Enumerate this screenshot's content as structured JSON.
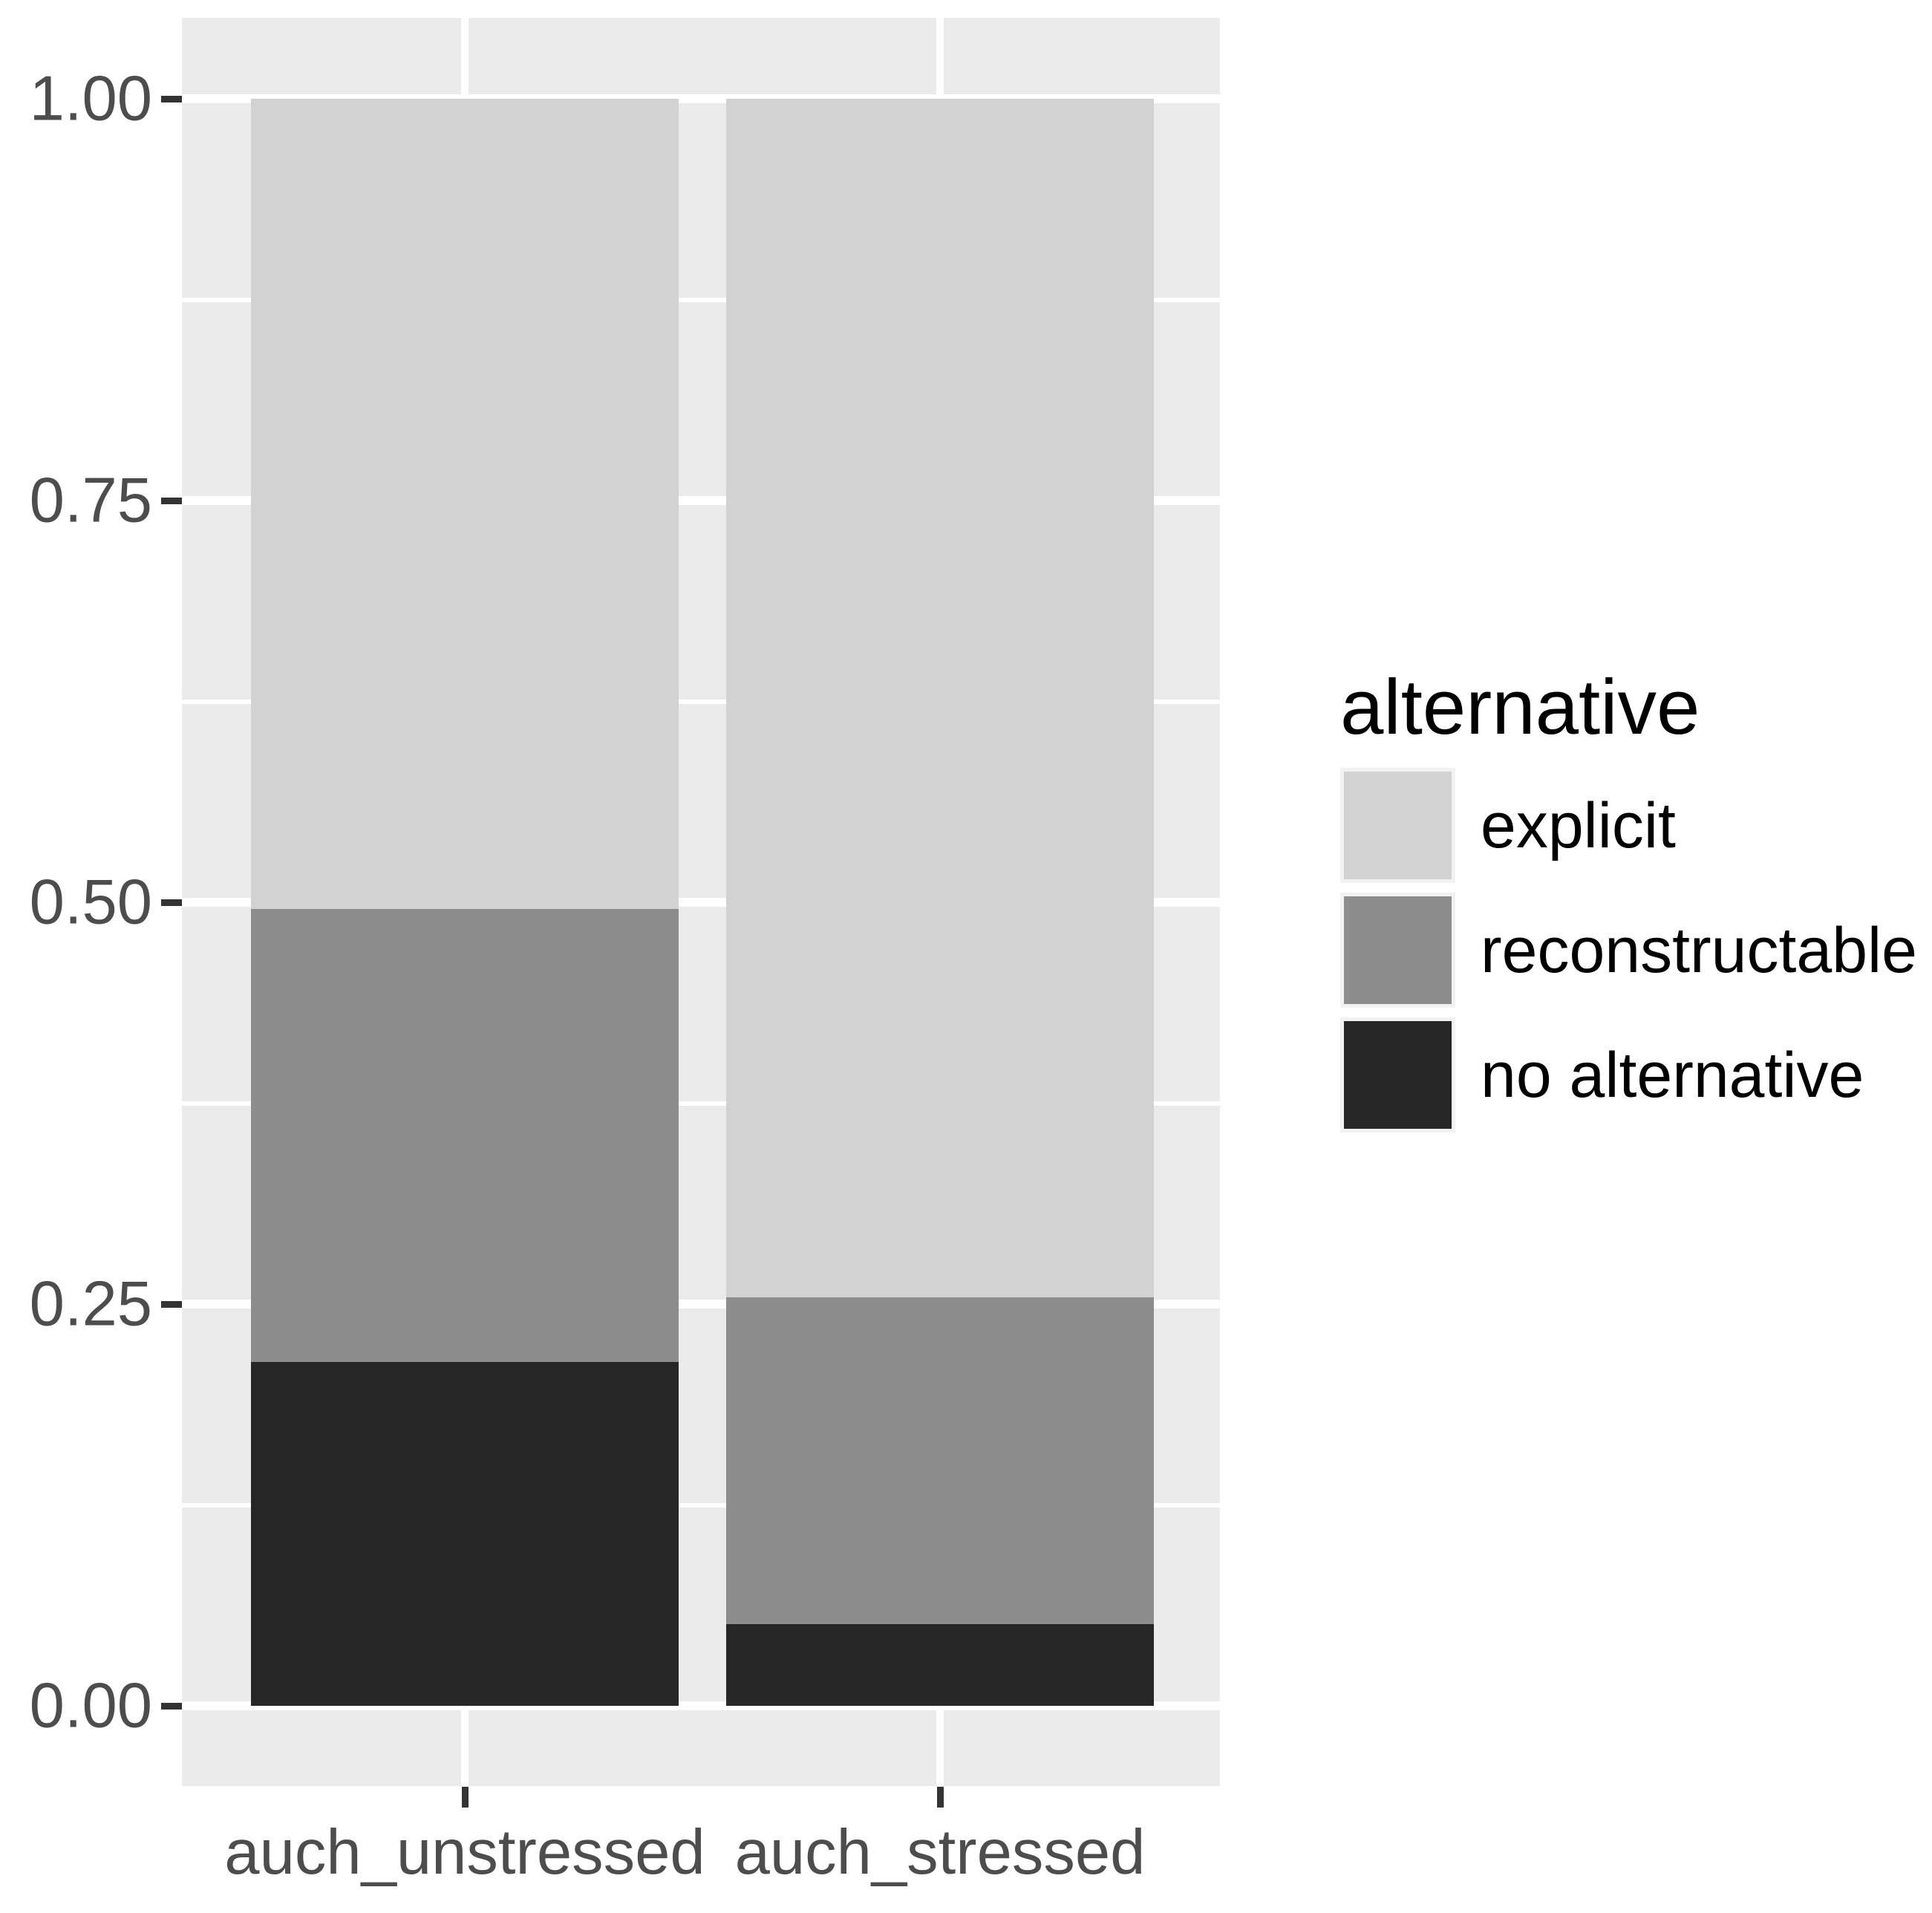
{
  "figure": {
    "background": "#FFFFFF",
    "panel_background": "#EBEBEB",
    "grid_color": "#FFFFFF",
    "tick_color": "#333333",
    "axis_text_color": "#4D4D4D"
  },
  "chart_data": {
    "type": "bar",
    "stacked": true,
    "orientation": "vertical",
    "title": "",
    "xlabel": "",
    "ylabel": "",
    "categories": [
      "auch_unstressed",
      "auch_stressed"
    ],
    "series": [
      {
        "name": "explicit",
        "color": "#D2D2D2",
        "values": [
          0.504,
          0.746
        ]
      },
      {
        "name": "reconstructable",
        "color": "#8D8D8D",
        "values": [
          0.282,
          0.203
        ]
      },
      {
        "name": "no alternative",
        "color": "#262626",
        "values": [
          0.214,
          0.051
        ]
      }
    ],
    "ylim": [
      0,
      1
    ],
    "y_ticks": [
      "0.00",
      "0.25",
      "0.50",
      "0.75",
      "1.00"
    ],
    "y_tick_values": [
      0,
      0.25,
      0.5,
      0.75,
      1
    ],
    "y_minor_values": [
      0.125,
      0.375,
      0.625,
      0.875
    ],
    "grid": "white-on-gray-panel",
    "legend_position": "right"
  },
  "legend": {
    "title": "alternative",
    "items": [
      {
        "label": "explicit",
        "color": "#D2D2D2"
      },
      {
        "label": "reconstructable",
        "color": "#8D8D8D"
      },
      {
        "label": "no alternative",
        "color": "#262626"
      }
    ]
  }
}
